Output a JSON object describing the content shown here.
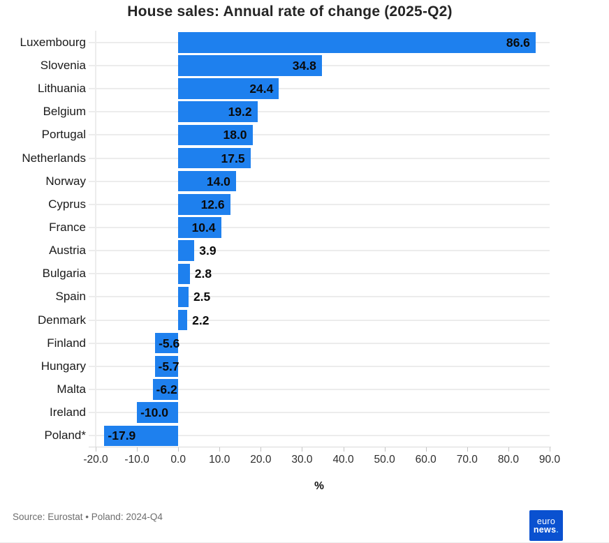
{
  "title": "House sales: Annual rate of change (2025-Q2)",
  "chart_data": {
    "type": "bar",
    "orientation": "horizontal",
    "title": "House sales: Annual rate of change (2025-Q2)",
    "categories": [
      "Luxembourg",
      "Slovenia",
      "Lithuania",
      "Belgium",
      "Portugal",
      "Netherlands",
      "Norway",
      "Cyprus",
      "France",
      "Austria",
      "Bulgaria",
      "Spain",
      "Denmark",
      "Finland",
      "Hungary",
      "Malta",
      "Ireland",
      "Poland*"
    ],
    "values": [
      86.6,
      34.8,
      24.4,
      19.2,
      18.0,
      17.5,
      14.0,
      12.6,
      10.4,
      3.9,
      2.8,
      2.5,
      2.2,
      -5.6,
      -5.7,
      -6.2,
      -10.0,
      -17.9
    ],
    "xlabel": "%",
    "x_ticks": [
      -20.0,
      -10.0,
      0.0,
      10.0,
      20.0,
      30.0,
      40.0,
      50.0,
      60.0,
      70.0,
      80.0,
      90.0
    ],
    "xlim": [
      -20,
      90
    ],
    "grid": "horizontal row gridlines, vertical line at -20, ticks below axis",
    "legend": "none",
    "bar_color": "#1e80ee",
    "value_label_color": "#0a0a0a",
    "value_label_placement": "inside bar end for long positive bars, right of bar for short positive bars, at left end of negative bars"
  },
  "footer": {
    "source": "Source: Eurostat • Poland: 2024-Q4"
  },
  "logo": {
    "line1": "euro",
    "line2": "news",
    "dot": ".",
    "bg_color": "#0a51d0",
    "dot_color": "#4db8ff"
  }
}
